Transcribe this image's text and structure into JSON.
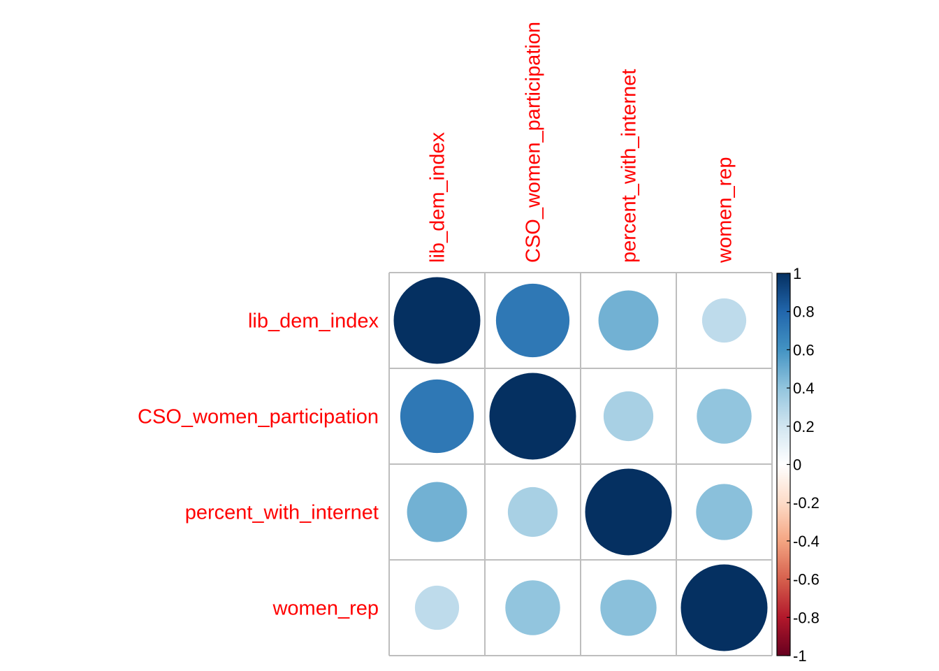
{
  "chart_data": {
    "type": "heatmap",
    "subtype": "correlation-matrix-circles",
    "variables": [
      "lib_dem_index",
      "CSO_women_participation",
      "percent_with_internet",
      "women_rep"
    ],
    "matrix": [
      [
        1.0,
        0.72,
        0.48,
        0.26
      ],
      [
        0.72,
        1.0,
        0.33,
        0.4
      ],
      [
        0.48,
        0.33,
        1.0,
        0.42
      ],
      [
        0.26,
        0.4,
        0.42,
        1.0
      ]
    ],
    "color_scale": {
      "range": [
        -1,
        1
      ],
      "ticks": [
        "1",
        "0.8",
        "0.6",
        "0.4",
        "0.2",
        "0",
        "-0.2",
        "-0.4",
        "-0.6",
        "-0.8",
        "-1"
      ],
      "stops": [
        {
          "value": -1.0,
          "color": "#67001f"
        },
        {
          "value": -0.8,
          "color": "#b2182b"
        },
        {
          "value": -0.6,
          "color": "#d6604d"
        },
        {
          "value": -0.4,
          "color": "#f4a582"
        },
        {
          "value": -0.2,
          "color": "#fddbc7"
        },
        {
          "value": 0.0,
          "color": "#ffffff"
        },
        {
          "value": 0.2,
          "color": "#d1e5f0"
        },
        {
          "value": 0.4,
          "color": "#92c5de"
        },
        {
          "value": 0.6,
          "color": "#4393c3"
        },
        {
          "value": 0.8,
          "color": "#2166ac"
        },
        {
          "value": 1.0,
          "color": "#053061"
        }
      ]
    },
    "label_color": "#ff0000",
    "grid": true,
    "legend": "right"
  }
}
